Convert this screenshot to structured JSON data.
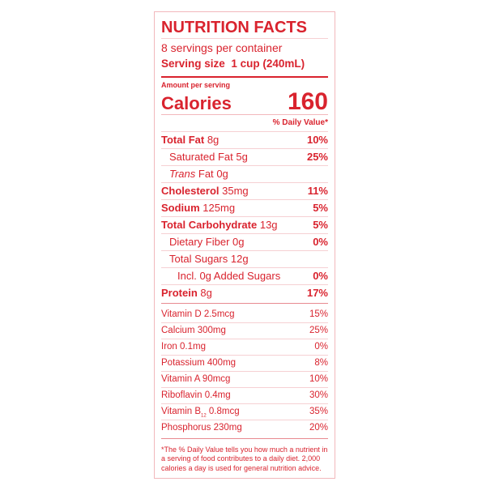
{
  "title": "NUTRITION FACTS",
  "servings_per_container": "8 servings per container",
  "serving_size_label": "Serving size",
  "serving_size_value": "1 cup (240mL)",
  "amount_per_serving": "Amount per serving",
  "calories_label": "Calories",
  "calories_value": "160",
  "daily_value_header": "% Daily Value*",
  "nutrients": [
    {
      "name": "Total Fat",
      "amount": "8g",
      "dv": "10%"
    },
    {
      "name": "Saturated Fat",
      "amount": "5g",
      "dv": "25%"
    },
    {
      "name": "Trans",
      "name2": "Fat",
      "amount": "0g",
      "dv": ""
    },
    {
      "name": "Cholesterol",
      "amount": "35mg",
      "dv": "11%"
    },
    {
      "name": "Sodium",
      "amount": "125mg",
      "dv": "5%"
    },
    {
      "name": "Total Carbohydrate",
      "amount": "13g",
      "dv": "5%"
    },
    {
      "name": "Dietary Fiber",
      "amount": "0g",
      "dv": "0%"
    },
    {
      "name": "Total Sugars",
      "amount": "12g",
      "dv": ""
    },
    {
      "name": "Incl. 0g Added Sugars",
      "amount": "",
      "dv": "0%"
    },
    {
      "name": "Protein",
      "amount": "8g",
      "dv": "17%"
    }
  ],
  "vitamins": [
    {
      "label": "Vitamin D 2.5mcg",
      "dv": "15%"
    },
    {
      "label": "Calcium 300mg",
      "dv": "25%"
    },
    {
      "label": "Iron 0.1mg",
      "dv": "0%"
    },
    {
      "label": "Potassium 400mg",
      "dv": "8%"
    },
    {
      "label": "Vitamin A 90mcg",
      "dv": "10%"
    },
    {
      "label": "Riboflavin 0.4mg",
      "dv": "30%"
    },
    {
      "label": "Vitamin B",
      "sub": "12",
      "label2": "0.8mcg",
      "dv": "35%"
    },
    {
      "label": "Phosphorus 230mg",
      "dv": "20%"
    }
  ],
  "footnote": "*The % Daily Value tells you how much a nutrient in a serving of food contributes to a daily diet. 2,000 calories a day is used for general nutrition advice.",
  "colors": {
    "text": "#d9232e",
    "rule": "#f6d0d3"
  }
}
